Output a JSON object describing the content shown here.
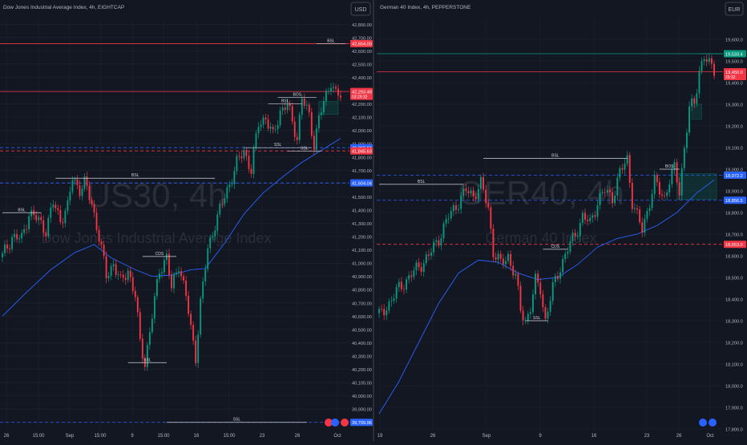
{
  "colors": {
    "background": "#131722",
    "grid": "#1f2430",
    "bull": "#089981",
    "bear": "#f23645",
    "ma": "#2962ff",
    "level_red": "#f23645",
    "level_blue": "#2962ff",
    "text": "#b2b5be",
    "watermark": "#2a2e39",
    "marker_white": "#d1d4dc",
    "marker_green": "#089981"
  },
  "chart_data": [
    {
      "type": "candlestick",
      "title": "Dow Jones Industrial Average Index, 4h, EIGHTCAP",
      "currency": "USD",
      "watermark_symbol": "US30, 4h",
      "watermark_name": "Dow Jones Industrial Average Index",
      "ylim": [
        39750,
        42850
      ],
      "y_ticks": [
        "42,800.00",
        "42,700.00",
        "42,600.00",
        "42,500.00",
        "42,400.00",
        "42,300.00",
        "42,200.00",
        "42,100.00",
        "42,000.00",
        "41,900.00",
        "41,800.00",
        "41,700.00",
        "41,600.00",
        "41,500.00",
        "41,400.00",
        "41,300.00",
        "41,200.00",
        "41,100.00",
        "41,000.00",
        "40,900.00",
        "40,800.00",
        "40,700.00",
        "40,600.00",
        "40,500.00",
        "40,400.00",
        "40,300.00",
        "40,200.00",
        "40,100.00",
        "40,000.00",
        "39,900.00",
        "39,800.00"
      ],
      "x_ticks": [
        "26",
        "15:00",
        "Sep",
        "15:00",
        "9",
        "15:00",
        "16",
        "15:00",
        "23",
        "26",
        "Oct"
      ],
      "waypoints": [
        [
          0,
          41050
        ],
        [
          4,
          41200
        ],
        [
          8,
          41180
        ],
        [
          11,
          41380
        ],
        [
          15,
          41320
        ],
        [
          18,
          41250
        ],
        [
          21,
          41450
        ],
        [
          24,
          41330
        ],
        [
          27,
          41420
        ],
        [
          29,
          41640
        ],
        [
          32,
          41560
        ],
        [
          34,
          41600
        ],
        [
          37,
          41450
        ],
        [
          40,
          41200
        ],
        [
          43,
          40900
        ],
        [
          46,
          41000
        ],
        [
          49,
          40850
        ],
        [
          52,
          40950
        ],
        [
          55,
          40750
        ],
        [
          57,
          40400
        ],
        [
          59,
          40250
        ],
        [
          62,
          40600
        ],
        [
          65,
          40950
        ],
        [
          68,
          41050
        ],
        [
          70,
          40800
        ],
        [
          73,
          41000
        ],
        [
          76,
          40750
        ],
        [
          78,
          40500
        ],
        [
          80,
          40300
        ],
        [
          82,
          40700
        ],
        [
          85,
          41100
        ],
        [
          88,
          41300
        ],
        [
          91,
          41450
        ],
        [
          94,
          41600
        ],
        [
          97,
          41750
        ],
        [
          100,
          41850
        ],
        [
          103,
          41700
        ],
        [
          106,
          42050
        ],
        [
          109,
          42100
        ],
        [
          112,
          41950
        ],
        [
          115,
          42150
        ],
        [
          118,
          42200
        ],
        [
          120,
          42050
        ],
        [
          122,
          41950
        ],
        [
          124,
          42250
        ],
        [
          127,
          42100
        ],
        [
          129,
          41900
        ],
        [
          131,
          42100
        ],
        [
          134,
          42250
        ],
        [
          136,
          42380
        ],
        [
          138,
          42280
        ],
        [
          140,
          42250
        ]
      ],
      "ma_values": [
        [
          0,
          40600
        ],
        [
          10,
          40780
        ],
        [
          20,
          40950
        ],
        [
          30,
          41080
        ],
        [
          38,
          41140
        ],
        [
          45,
          41040
        ],
        [
          55,
          40950
        ],
        [
          62,
          40900
        ],
        [
          70,
          40910
        ],
        [
          78,
          40950
        ],
        [
          84,
          40960
        ],
        [
          92,
          41150
        ],
        [
          100,
          41370
        ],
        [
          108,
          41530
        ],
        [
          116,
          41650
        ],
        [
          124,
          41760
        ],
        [
          132,
          41850
        ],
        [
          140,
          41940
        ]
      ],
      "levels": [
        {
          "value": 42654.0,
          "label": "42,654.00",
          "color": "#f23645",
          "style": "solid"
        },
        {
          "value": 42293.48,
          "label": "42,293.48",
          "sublabel": "03:29:32",
          "color": "#f23645",
          "style": "solid"
        },
        {
          "value": 41869.84,
          "label": "41,869.84",
          "color": "#2962ff",
          "style": "dashed"
        },
        {
          "value": 41845.63,
          "label": "41,845.63",
          "color": "#f23645",
          "style": "dashed"
        },
        {
          "value": 41604.04,
          "label": "41,604.04",
          "color": "#2962ff",
          "style": "dashed"
        },
        {
          "value": 39799.96,
          "label": "39,799.96",
          "color": "#2962ff",
          "style": "dashed"
        }
      ],
      "annotations": [
        {
          "text": "BSL",
          "x1": 130,
          "x2": 142,
          "y": 42654,
          "color": "#d1d4dc"
        },
        {
          "text": "BSL",
          "x1": 0,
          "x2": 16,
          "y": 41380,
          "color": "#d1d4dc"
        },
        {
          "text": "BSL",
          "x1": 22,
          "x2": 88,
          "y": 41640,
          "color": "#d1d4dc"
        },
        {
          "text": "BSL",
          "x1": 110,
          "x2": 124,
          "y": 42200,
          "color": "#d1d4dc"
        },
        {
          "text": "BOS",
          "x1": 114,
          "x2": 130,
          "y": 42250,
          "color": "#d1d4dc"
        },
        {
          "text": "SSL",
          "x1": 100,
          "x2": 128,
          "y": 41870,
          "color": "#d1d4dc"
        },
        {
          "text": "SSL",
          "x1": 118,
          "x2": 132,
          "y": 41845,
          "color": "#d1d4dc"
        },
        {
          "text": "CDS",
          "x1": 58,
          "x2": 72,
          "y": 41050,
          "color": "#d1d4dc"
        },
        {
          "text": "SSL",
          "x1": 52,
          "x2": 68,
          "y": 40250,
          "color": "#d1d4dc"
        },
        {
          "text": "SSL",
          "x1": 68,
          "x2": 126,
          "y": 39799.96,
          "color": "#d1d4dc"
        }
      ],
      "zone": {
        "x1": 131,
        "x2": 139,
        "y_top": 42220,
        "y_bottom": 42120
      }
    },
    {
      "type": "candlestick",
      "title": "German 40 Index, 4h, PEPPERSTONE",
      "currency": "EUR",
      "watermark_symbol": "GER40, 4h",
      "watermark_name": "German 40 Index",
      "ylim": [
        17800,
        19700
      ],
      "y_ticks": [
        "19,600.0",
        "19,500.0",
        "19,400.0",
        "19,300.0",
        "19,200.0",
        "19,100.0",
        "19,000.0",
        "18,900.0",
        "18,800.0",
        "18,700.0",
        "18,600.0",
        "18,500.0",
        "18,400.0",
        "18,300.0",
        "18,200.0",
        "18,100.0",
        "18,000.0",
        "17,900.0",
        "17,800.0"
      ],
      "x_ticks": [
        "19",
        "26",
        "Sep",
        "9",
        "16",
        "23",
        "26",
        "Oct"
      ],
      "waypoints": [
        [
          0,
          18320
        ],
        [
          4,
          18380
        ],
        [
          8,
          18450
        ],
        [
          12,
          18500
        ],
        [
          16,
          18550
        ],
        [
          20,
          18600
        ],
        [
          24,
          18680
        ],
        [
          28,
          18780
        ],
        [
          32,
          18850
        ],
        [
          35,
          18900
        ],
        [
          38,
          18880
        ],
        [
          41,
          18930
        ],
        [
          44,
          18820
        ],
        [
          46,
          18620
        ],
        [
          49,
          18560
        ],
        [
          52,
          18600
        ],
        [
          55,
          18500
        ],
        [
          57,
          18350
        ],
        [
          59,
          18300
        ],
        [
          61,
          18360
        ],
        [
          63,
          18480
        ],
        [
          65,
          18450
        ],
        [
          67,
          18300
        ],
        [
          70,
          18450
        ],
        [
          73,
          18550
        ],
        [
          76,
          18630
        ],
        [
          79,
          18700
        ],
        [
          82,
          18780
        ],
        [
          85,
          18750
        ],
        [
          88,
          18850
        ],
        [
          91,
          18900
        ],
        [
          94,
          18870
        ],
        [
          97,
          18980
        ],
        [
          100,
          19050
        ],
        [
          102,
          18850
        ],
        [
          104,
          18780
        ],
        [
          106,
          18720
        ],
        [
          109,
          18850
        ],
        [
          111,
          18940
        ],
        [
          113,
          18900
        ],
        [
          115,
          18870
        ],
        [
          117,
          18950
        ],
        [
          119,
          19000
        ],
        [
          121,
          18900
        ],
        [
          123,
          19100
        ],
        [
          125,
          19280
        ],
        [
          127,
          19300
        ],
        [
          129,
          19460
        ],
        [
          131,
          19520
        ],
        [
          133,
          19480
        ],
        [
          135,
          19460
        ]
      ],
      "ma_values": [
        [
          0,
          17870
        ],
        [
          8,
          18020
        ],
        [
          16,
          18200
        ],
        [
          24,
          18380
        ],
        [
          32,
          18520
        ],
        [
          40,
          18580
        ],
        [
          48,
          18570
        ],
        [
          56,
          18520
        ],
        [
          64,
          18490
        ],
        [
          72,
          18500
        ],
        [
          80,
          18560
        ],
        [
          88,
          18640
        ],
        [
          96,
          18680
        ],
        [
          104,
          18700
        ],
        [
          112,
          18740
        ],
        [
          120,
          18800
        ],
        [
          128,
          18890
        ],
        [
          135,
          18950
        ]
      ],
      "levels": [
        {
          "value": 19533.4,
          "label": "19,533.4",
          "color": "#089981",
          "style": "solid"
        },
        {
          "value": 19450.0,
          "label": "19,450.0",
          "sublabel": "29:32",
          "color": "#f23645",
          "style": "solid"
        },
        {
          "value": 18972.2,
          "label": "18,972.2",
          "color": "#2962ff",
          "style": "dashed"
        },
        {
          "value": 18856.5,
          "label": "18,856.5",
          "color": "#2962ff",
          "style": "dashed"
        },
        {
          "value": 18653.0,
          "label": "18,653.0",
          "color": "#f23645",
          "style": "dashed"
        }
      ],
      "annotations": [
        {
          "text": "BSL",
          "x1": 0,
          "x2": 34,
          "y": 18930,
          "color": "#d1d4dc"
        },
        {
          "text": "BSL",
          "x1": 42,
          "x2": 100,
          "y": 19050,
          "color": "#d1d4dc"
        },
        {
          "text": "BOS",
          "x1": 113,
          "x2": 121,
          "y": 19000,
          "color": "#d1d4dc"
        },
        {
          "text": "CDS",
          "x1": 66,
          "x2": 76,
          "y": 18630,
          "color": "#d1d4dc"
        },
        {
          "text": "SSL",
          "x1": 59,
          "x2": 68,
          "y": 18300,
          "color": "#d1d4dc"
        }
      ],
      "marker_green": {
        "x1": 129,
        "x2": 140,
        "y": 19533.4
      },
      "zone": {
        "x1": 120,
        "x2": 136,
        "y_top": 18980,
        "y_bottom": 18860
      },
      "zone2": {
        "x1": 126,
        "x2": 130,
        "y_top": 19300,
        "y_bottom": 19230
      }
    }
  ]
}
